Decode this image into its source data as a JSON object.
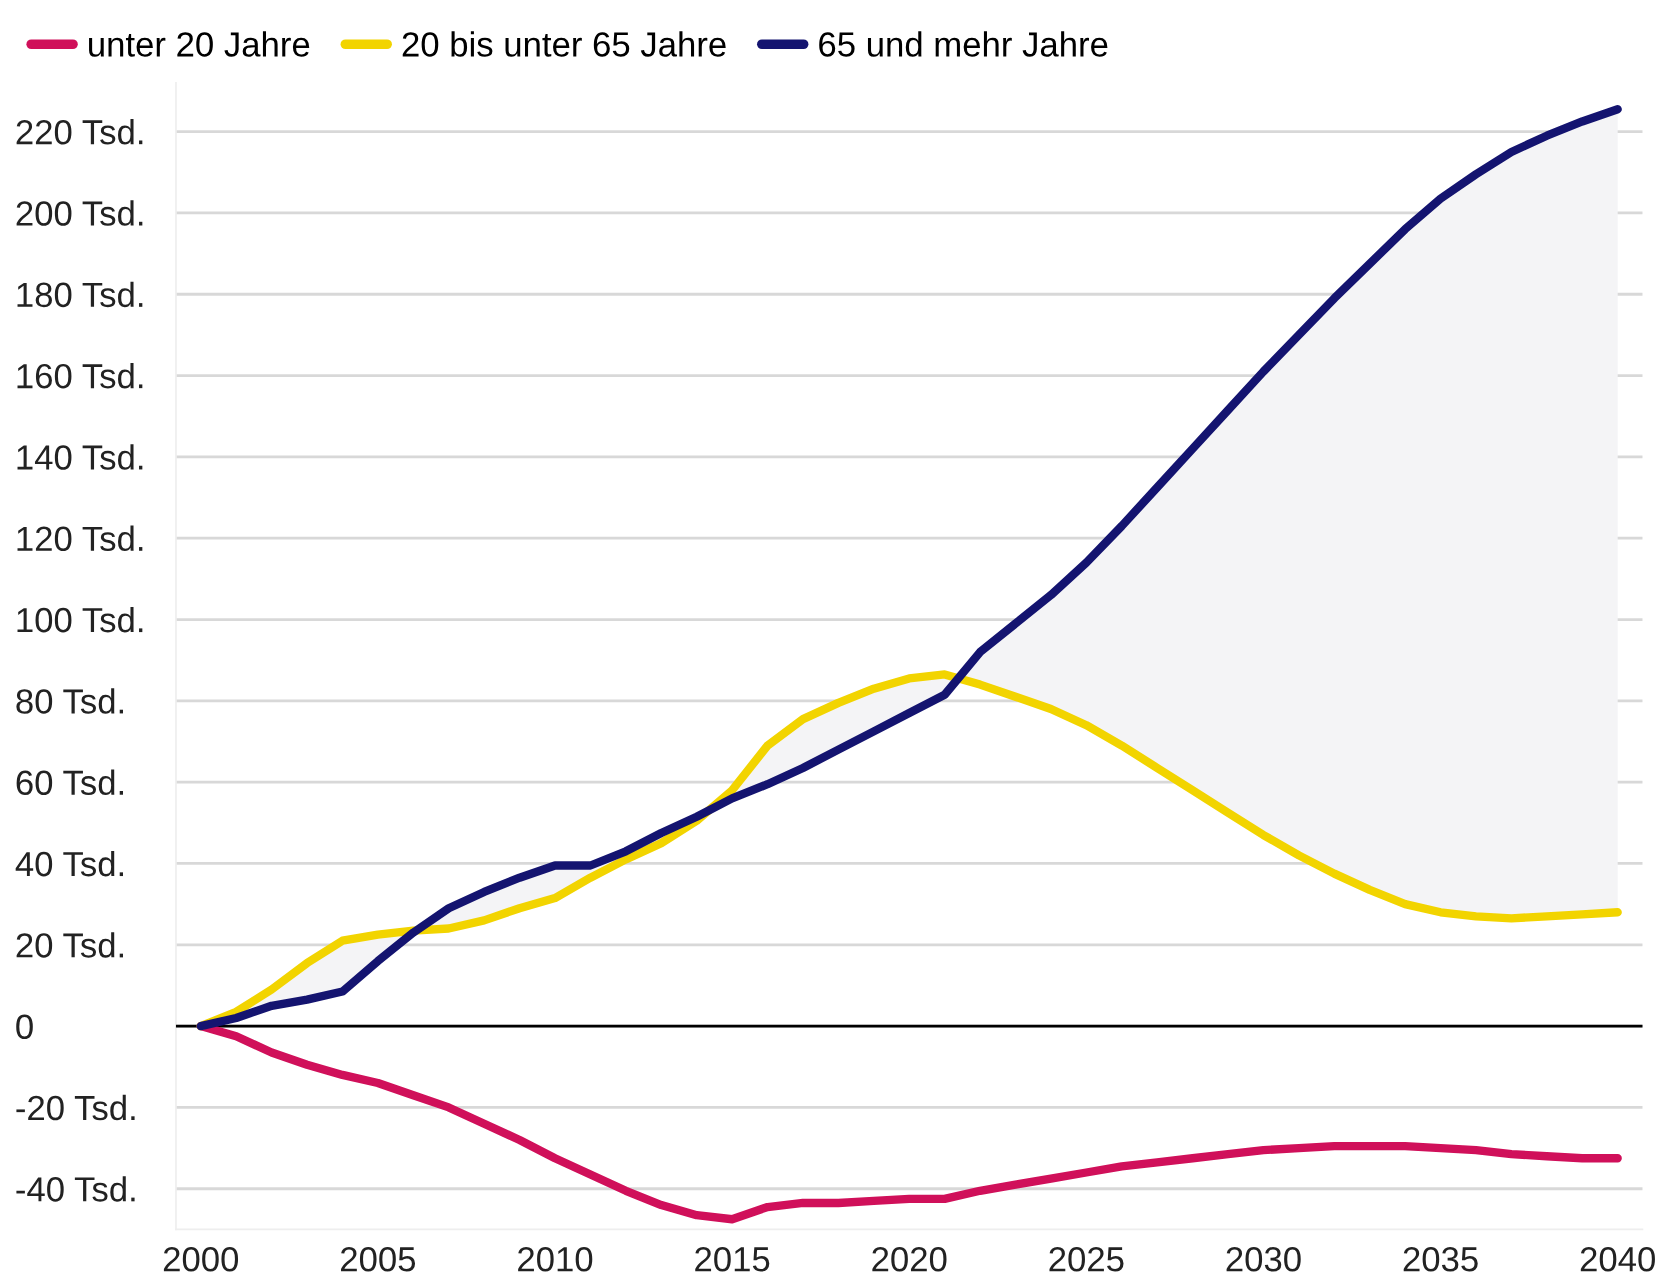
{
  "chart_data": {
    "type": "line",
    "x": [
      2000,
      2001,
      2002,
      2003,
      2004,
      2005,
      2006,
      2007,
      2008,
      2009,
      2010,
      2011,
      2012,
      2013,
      2014,
      2015,
      2016,
      2017,
      2018,
      2019,
      2020,
      2021,
      2022,
      2023,
      2024,
      2025,
      2026,
      2027,
      2028,
      2029,
      2030,
      2031,
      2032,
      2033,
      2034,
      2035,
      2036,
      2037,
      2038,
      2039,
      2040
    ],
    "series": [
      {
        "name": "unter 20 Jahre",
        "color": "#d0105a",
        "values": [
          0,
          -2.5,
          -6.5,
          -9.5,
          -12,
          -14,
          -17,
          -20,
          -24,
          -28,
          -32.5,
          -36.5,
          -40.5,
          -44,
          -46.5,
          -47.5,
          -44.5,
          -43.5,
          -43.5,
          -43,
          -42.5,
          -42.5,
          -40.5,
          -39,
          -37.5,
          -36,
          -34.5,
          -33.5,
          -32.5,
          -31.5,
          -30.5,
          -30,
          -29.5,
          -29.5,
          -29.5,
          -30,
          -30.5,
          -31.5,
          -32,
          -32.5,
          -32.5
        ]
      },
      {
        "name": "20 bis unter 65 Jahre",
        "color": "#f2d400",
        "values": [
          0,
          3.5,
          9,
          15.5,
          21,
          22.5,
          23.5,
          24,
          26,
          29,
          31.5,
          36.5,
          41,
          45,
          50.5,
          58,
          69,
          75.5,
          79.5,
          83,
          85.5,
          86.5,
          84,
          81,
          78,
          74,
          69,
          63.5,
          58,
          52.5,
          47,
          42,
          37.5,
          33.5,
          30,
          28,
          27,
          26.5,
          27,
          27.5,
          28
        ]
      },
      {
        "name": "65 und mehr Jahre",
        "color": "#141470",
        "values": [
          0,
          2,
          5,
          6.5,
          8.5,
          16,
          23,
          29,
          33,
          36.5,
          39.5,
          39.5,
          43,
          47.5,
          51.5,
          56,
          59.5,
          63.5,
          68,
          72.5,
          77,
          81.5,
          92,
          99,
          106,
          114,
          123,
          132.5,
          142,
          151.5,
          161,
          170,
          179,
          187.5,
          196,
          203.5,
          209.5,
          215,
          219,
          222.5,
          225.5
        ],
        "lower": [
          0,
          3.5,
          9,
          15.5,
          21,
          22.5,
          23.5,
          24,
          26,
          29,
          31.5,
          36.5,
          41,
          45,
          50.5,
          58,
          69,
          75.5,
          79.5,
          83,
          85.5,
          86.5,
          84,
          81,
          78,
          74,
          69,
          63.5,
          58,
          52.5,
          47,
          42,
          37.5,
          33.5,
          30,
          28,
          27,
          26.5,
          27,
          27.5,
          28
        ],
        "upper": [
          0,
          2,
          5,
          6.5,
          8.5,
          16,
          23,
          29,
          33,
          36.5,
          39.5,
          39.5,
          43,
          47.5,
          51.5,
          56,
          59.5,
          63.5,
          68,
          72.5,
          77,
          81.5,
          92,
          99,
          106,
          114,
          123,
          132.5,
          142,
          151.5,
          161,
          170,
          179,
          187.5,
          196,
          203.5,
          209.5,
          215,
          219,
          222.5,
          225.5
        ]
      }
    ],
    "xlim": [
      1999.3,
      2040.7
    ],
    "xticks": [
      2000,
      2005,
      2010,
      2015,
      2020,
      2025,
      2030,
      2035,
      2040
    ],
    "ylim": [
      -50,
      232
    ],
    "yticks": [
      {
        "value": -40,
        "label": "-40 Tsd."
      },
      {
        "value": -20,
        "label": "-20 Tsd."
      },
      0,
      {
        "value": 20,
        "label": "20 Tsd."
      },
      {
        "value": 40,
        "label": "40 Tsd."
      },
      {
        "value": 60,
        "label": "60 Tsd."
      },
      {
        "value": 80,
        "label": "80 Tsd."
      },
      {
        "value": 100,
        "label": "100 Tsd."
      },
      {
        "value": 120,
        "label": "120 Tsd."
      },
      {
        "value": 140,
        "label": "140 Tsd."
      },
      {
        "value": 160,
        "label": "160 Tsd."
      },
      {
        "value": 180,
        "label": "180 Tsd."
      },
      {
        "value": 200,
        "label": "200 Tsd."
      },
      {
        "value": 220,
        "label": "220 Tsd."
      }
    ],
    "ref_lines": [
      {
        "axis": "y",
        "value": 0,
        "color": "#000000"
      }
    ],
    "grid": "y",
    "legend": "top left",
    "marker": "none",
    "line_style": "solid"
  }
}
